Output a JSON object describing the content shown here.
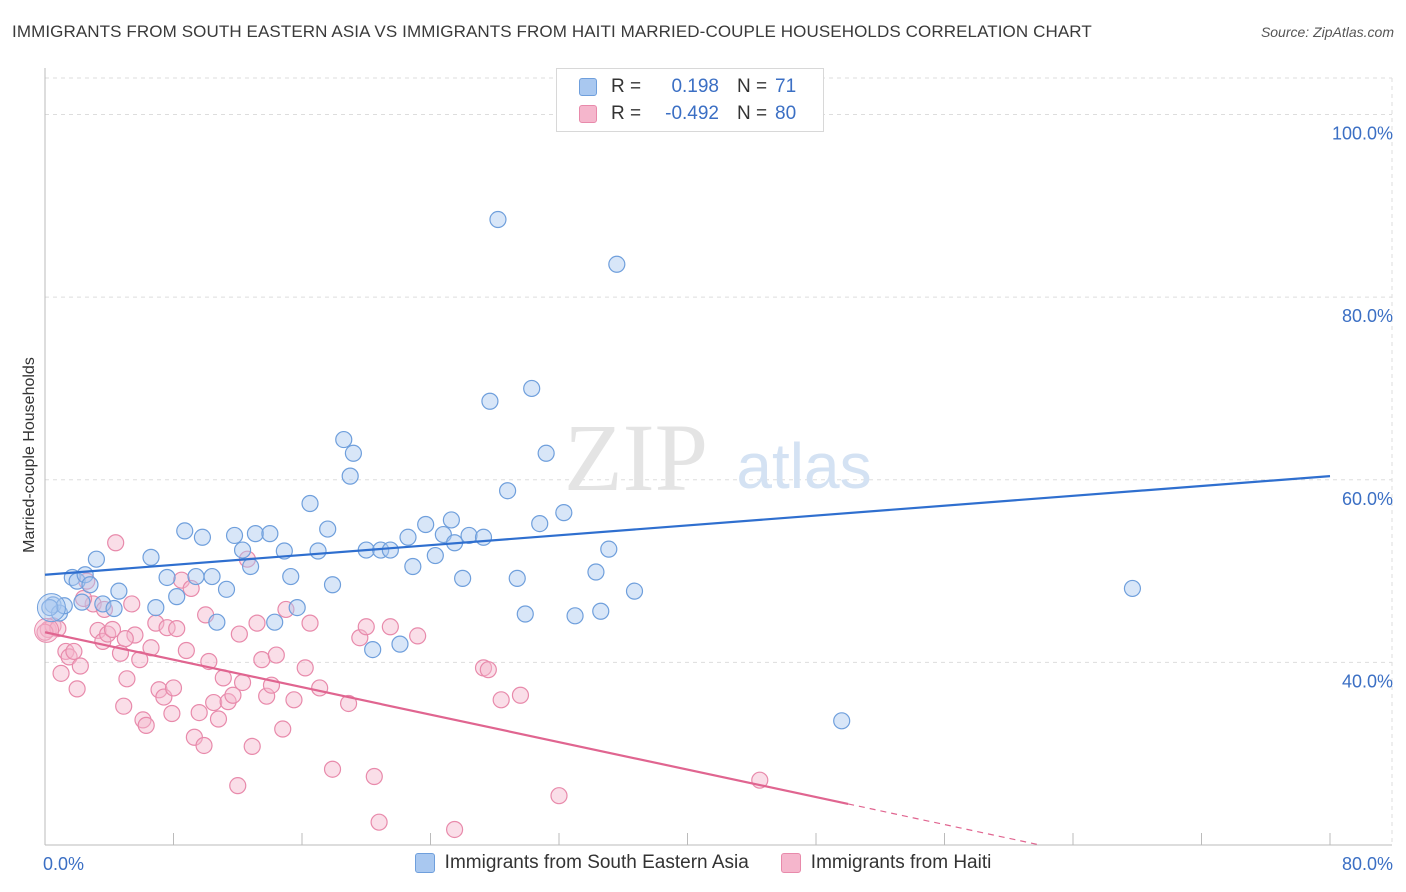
{
  "title": "IMMIGRANTS FROM SOUTH EASTERN ASIA VS IMMIGRANTS FROM HAITI MARRIED-COUPLE HOUSEHOLDS CORRELATION CHART",
  "source": "Source: ZipAtlas.com",
  "watermark": {
    "zip": "ZIP",
    "atlas": "atlas"
  },
  "legend": {
    "r_label": "R =",
    "n_label": "N =",
    "series": [
      {
        "r": "0.198",
        "n": "71"
      },
      {
        "r": "-0.492",
        "n": "80"
      }
    ]
  },
  "bottom_legend": [
    "Immigrants from South Eastern Asia",
    "Immigrants from Haiti"
  ],
  "colors": {
    "blue_fill": "#a9c8f0",
    "blue_stroke": "#6f9fdc",
    "blue_line": "#2f6fcf",
    "pink_fill": "#f5b6cc",
    "pink_stroke": "#e88aab",
    "pink_line": "#e06590",
    "tick_text": "#3b6fc4",
    "grid": "#dddddd"
  },
  "chart_data": {
    "type": "scatter",
    "title": "IMMIGRANTS FROM SOUTH EASTERN ASIA VS IMMIGRANTS FROM HAITI MARRIED-COUPLE HOUSEHOLDS CORRELATION CHART",
    "xlabel": "",
    "ylabel": "Married-couple Households",
    "xlim": [
      0,
      80
    ],
    "ylim": [
      20,
      104
    ],
    "x_tick_labels": [
      "0.0%",
      "80.0%"
    ],
    "y_ticks": [
      40,
      60,
      80,
      100
    ],
    "y_tick_labels": [
      "40.0%",
      "60.0%",
      "80.0%",
      "100.0%"
    ],
    "series": [
      {
        "name": "Immigrants from South Eastern Asia",
        "r": 0.198,
        "n": 71,
        "trend": {
          "x0": 0,
          "y0": 49.6,
          "x1": 80,
          "y1": 60.4
        },
        "points": [
          [
            0.5,
            46.3
          ],
          [
            0.9,
            45.4
          ],
          [
            1.2,
            46.2
          ],
          [
            1.7,
            49.3
          ],
          [
            2.0,
            48.9
          ],
          [
            2.3,
            46.6
          ],
          [
            2.5,
            49.6
          ],
          [
            2.8,
            48.5
          ],
          [
            3.2,
            51.3
          ],
          [
            3.6,
            46.4
          ],
          [
            4.3,
            45.9
          ],
          [
            4.6,
            47.8
          ],
          [
            6.6,
            51.5
          ],
          [
            6.9,
            46.0
          ],
          [
            7.6,
            49.3
          ],
          [
            8.2,
            47.2
          ],
          [
            8.7,
            54.4
          ],
          [
            9.4,
            49.4
          ],
          [
            9.8,
            53.7
          ],
          [
            10.4,
            49.4
          ],
          [
            10.7,
            44.4
          ],
          [
            11.3,
            48.0
          ],
          [
            11.8,
            53.9
          ],
          [
            12.3,
            52.3
          ],
          [
            12.8,
            50.5
          ],
          [
            13.1,
            54.1
          ],
          [
            14.0,
            54.1
          ],
          [
            14.3,
            44.4
          ],
          [
            14.9,
            52.2
          ],
          [
            15.3,
            49.4
          ],
          [
            15.7,
            46.0
          ],
          [
            16.5,
            57.4
          ],
          [
            17.0,
            52.2
          ],
          [
            17.6,
            54.6
          ],
          [
            17.9,
            48.5
          ],
          [
            18.6,
            64.4
          ],
          [
            19.0,
            60.4
          ],
          [
            19.2,
            62.9
          ],
          [
            20.0,
            52.3
          ],
          [
            20.4,
            41.4
          ],
          [
            20.9,
            52.3
          ],
          [
            21.5,
            52.3
          ],
          [
            22.1,
            42.0
          ],
          [
            22.6,
            53.7
          ],
          [
            22.9,
            50.5
          ],
          [
            23.7,
            55.1
          ],
          [
            24.3,
            51.7
          ],
          [
            24.8,
            54.0
          ],
          [
            25.3,
            55.6
          ],
          [
            25.5,
            53.1
          ],
          [
            26.0,
            49.2
          ],
          [
            26.4,
            53.9
          ],
          [
            27.3,
            53.7
          ],
          [
            27.7,
            68.6
          ],
          [
            28.2,
            88.5
          ],
          [
            28.8,
            58.8
          ],
          [
            29.4,
            49.2
          ],
          [
            29.9,
            45.3
          ],
          [
            30.3,
            70.0
          ],
          [
            30.8,
            55.2
          ],
          [
            31.2,
            62.9
          ],
          [
            32.3,
            56.4
          ],
          [
            33.0,
            45.1
          ],
          [
            34.3,
            49.9
          ],
          [
            34.6,
            45.6
          ],
          [
            35.1,
            52.4
          ],
          [
            35.6,
            83.6
          ],
          [
            36.7,
            47.8
          ],
          [
            49.6,
            33.6
          ],
          [
            67.7,
            48.1
          ],
          [
            0.3,
            46.0
          ]
        ]
      },
      {
        "name": "Immigrants from Haiti",
        "r": -0.492,
        "n": 80,
        "trend": {
          "x0": 0,
          "y0": 43.3,
          "x1": 50,
          "y1": 24.5,
          "dash_to_x": 80,
          "dash_to_y": 13.2
        },
        "points": [
          [
            0.2,
            43.6
          ],
          [
            0.5,
            44.0
          ],
          [
            0.8,
            43.7
          ],
          [
            1.0,
            38.8
          ],
          [
            1.3,
            41.2
          ],
          [
            1.5,
            40.6
          ],
          [
            1.8,
            41.2
          ],
          [
            2.0,
            37.1
          ],
          [
            2.2,
            39.6
          ],
          [
            2.6,
            48.9
          ],
          [
            3.0,
            46.4
          ],
          [
            3.3,
            43.5
          ],
          [
            3.6,
            42.3
          ],
          [
            3.9,
            43.1
          ],
          [
            4.2,
            43.6
          ],
          [
            4.4,
            53.1
          ],
          [
            4.7,
            41.0
          ],
          [
            4.9,
            35.2
          ],
          [
            5.1,
            38.2
          ],
          [
            5.4,
            46.4
          ],
          [
            5.6,
            43.0
          ],
          [
            5.9,
            40.3
          ],
          [
            6.1,
            33.7
          ],
          [
            6.3,
            33.1
          ],
          [
            6.6,
            41.6
          ],
          [
            6.9,
            44.3
          ],
          [
            7.1,
            37.0
          ],
          [
            7.4,
            36.2
          ],
          [
            7.6,
            43.8
          ],
          [
            7.9,
            34.4
          ],
          [
            8.2,
            43.7
          ],
          [
            8.5,
            49.0
          ],
          [
            8.8,
            41.3
          ],
          [
            9.1,
            48.1
          ],
          [
            9.3,
            31.8
          ],
          [
            9.6,
            34.5
          ],
          [
            9.9,
            30.9
          ],
          [
            10.2,
            40.1
          ],
          [
            10.5,
            35.6
          ],
          [
            10.8,
            33.8
          ],
          [
            11.1,
            38.3
          ],
          [
            11.4,
            35.7
          ],
          [
            11.7,
            36.4
          ],
          [
            12.0,
            26.5
          ],
          [
            12.3,
            37.8
          ],
          [
            12.6,
            51.3
          ],
          [
            12.9,
            30.8
          ],
          [
            13.2,
            44.3
          ],
          [
            13.5,
            40.3
          ],
          [
            13.8,
            36.3
          ],
          [
            14.1,
            37.5
          ],
          [
            14.4,
            40.8
          ],
          [
            14.8,
            32.7
          ],
          [
            15.0,
            45.8
          ],
          [
            15.5,
            35.9
          ],
          [
            16.2,
            39.4
          ],
          [
            16.5,
            44.3
          ],
          [
            17.1,
            37.2
          ],
          [
            17.9,
            28.3
          ],
          [
            18.9,
            35.5
          ],
          [
            19.6,
            42.7
          ],
          [
            20.0,
            43.9
          ],
          [
            20.5,
            27.5
          ],
          [
            20.8,
            22.5
          ],
          [
            21.5,
            43.9
          ],
          [
            23.2,
            42.9
          ],
          [
            25.5,
            21.7
          ],
          [
            27.3,
            39.4
          ],
          [
            27.6,
            39.2
          ],
          [
            28.4,
            35.9
          ],
          [
            29.6,
            36.4
          ],
          [
            32.0,
            25.4
          ],
          [
            44.5,
            27.1
          ],
          [
            0.0,
            43.3
          ],
          [
            2.4,
            47.0
          ],
          [
            3.7,
            45.8
          ],
          [
            5.0,
            42.6
          ],
          [
            8.0,
            37.2
          ],
          [
            10.0,
            45.2
          ],
          [
            12.1,
            43.1
          ]
        ]
      }
    ]
  }
}
